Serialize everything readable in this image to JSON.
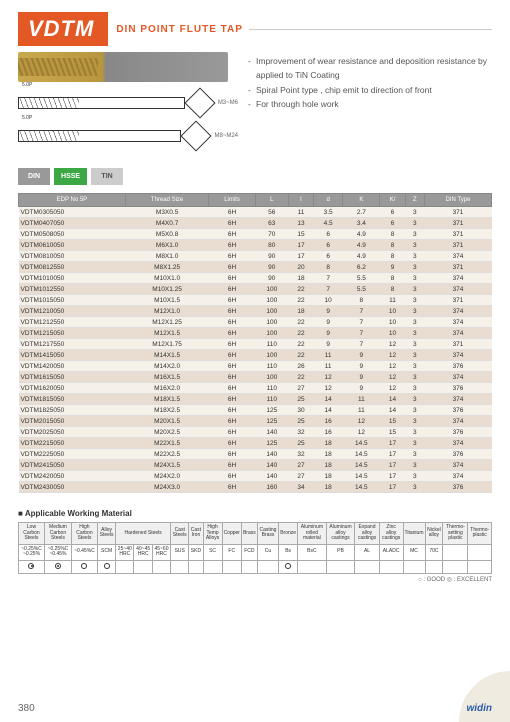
{
  "header": {
    "title": "VDTM",
    "subtitle": "DIN POINT FLUTE TAP"
  },
  "bullets": [
    "Improvement of wear resistance and deposition resistance by applied to TiN Coating",
    "Spiral Point type , chip emit to direction of front",
    "For through hole work"
  ],
  "diagram_labels": {
    "range1": "M3~M6",
    "range2": "M8~M24",
    "dim1": "5.0P"
  },
  "badges": {
    "din": "DIN",
    "hsse": "HSSE",
    "tin": "TIN"
  },
  "table": {
    "headers": [
      "EDP No\n5P",
      "Thread Size",
      "Limits",
      "L",
      "l",
      "d",
      "K",
      "K/",
      "Z",
      "DIN Type"
    ],
    "rows": [
      [
        "VDTM0305050",
        "M3X0.5",
        "6H",
        "56",
        "11",
        "3.5",
        "2.7",
        "6",
        "3",
        "371"
      ],
      [
        "VDTM0407050",
        "M4X0.7",
        "6H",
        "63",
        "13",
        "4.5",
        "3.4",
        "6",
        "3",
        "371"
      ],
      [
        "VDTM0508050",
        "M5X0.8",
        "6H",
        "70",
        "15",
        "6",
        "4.9",
        "8",
        "3",
        "371"
      ],
      [
        "VDTM0610050",
        "M6X1.0",
        "6H",
        "80",
        "17",
        "6",
        "4.9",
        "8",
        "3",
        "371"
      ],
      [
        "VDTM0810050",
        "M8X1.0",
        "6H",
        "90",
        "17",
        "6",
        "4.9",
        "8",
        "3",
        "374"
      ],
      [
        "VDTM0812550",
        "M8X1.25",
        "6H",
        "90",
        "20",
        "8",
        "6.2",
        "9",
        "3",
        "371"
      ],
      [
        "VDTM1010050",
        "M10X1.0",
        "6H",
        "90",
        "18",
        "7",
        "5.5",
        "8",
        "3",
        "374"
      ],
      [
        "VDTM1012550",
        "M10X1.25",
        "6H",
        "100",
        "22",
        "7",
        "5.5",
        "8",
        "3",
        "374"
      ],
      [
        "VDTM1015050",
        "M10X1.5",
        "6H",
        "100",
        "22",
        "10",
        "8",
        "11",
        "3",
        "371"
      ],
      [
        "VDTM1210050",
        "M12X1.0",
        "6H",
        "100",
        "18",
        "9",
        "7",
        "10",
        "3",
        "374"
      ],
      [
        "VDTM1212550",
        "M12X1.25",
        "6H",
        "100",
        "22",
        "9",
        "7",
        "10",
        "3",
        "374"
      ],
      [
        "VDTM1215050",
        "M12X1.5",
        "6H",
        "100",
        "22",
        "9",
        "7",
        "10",
        "3",
        "374"
      ],
      [
        "VDTM1217550",
        "M12X1.75",
        "6H",
        "110",
        "22",
        "9",
        "7",
        "12",
        "3",
        "371"
      ],
      [
        "VDTM1415050",
        "M14X1.5",
        "6H",
        "100",
        "22",
        "11",
        "9",
        "12",
        "3",
        "374"
      ],
      [
        "VDTM1420050",
        "M14X2.0",
        "6H",
        "110",
        "26",
        "11",
        "9",
        "12",
        "3",
        "376"
      ],
      [
        "VDTM1615050",
        "M16X1.5",
        "6H",
        "100",
        "22",
        "12",
        "9",
        "12",
        "3",
        "374"
      ],
      [
        "VDTM1620050",
        "M16X2.0",
        "6H",
        "110",
        "27",
        "12",
        "9",
        "12",
        "3",
        "376"
      ],
      [
        "VDTM1815050",
        "M18X1.5",
        "6H",
        "110",
        "25",
        "14",
        "11",
        "14",
        "3",
        "374"
      ],
      [
        "VDTM1825050",
        "M18X2.5",
        "6H",
        "125",
        "30",
        "14",
        "11",
        "14",
        "3",
        "376"
      ],
      [
        "VDTM2015050",
        "M20X1.5",
        "6H",
        "125",
        "25",
        "16",
        "12",
        "15",
        "3",
        "374"
      ],
      [
        "VDTM2025050",
        "M20X2.5",
        "6H",
        "140",
        "32",
        "16",
        "12",
        "15",
        "3",
        "376"
      ],
      [
        "VDTM2215050",
        "M22X1.5",
        "6H",
        "125",
        "25",
        "18",
        "14.5",
        "17",
        "3",
        "374"
      ],
      [
        "VDTM2225050",
        "M22X2.5",
        "6H",
        "140",
        "32",
        "18",
        "14.5",
        "17",
        "3",
        "376"
      ],
      [
        "VDTM2415050",
        "M24X1.5",
        "6H",
        "140",
        "27",
        "18",
        "14.5",
        "17",
        "3",
        "374"
      ],
      [
        "VDTM2420050",
        "M24X2.0",
        "6H",
        "140",
        "27",
        "18",
        "14.5",
        "17",
        "3",
        "374"
      ],
      [
        "VDTM2430050",
        "M24X3.0",
        "6H",
        "160",
        "34",
        "18",
        "14.5",
        "17",
        "3",
        "376"
      ]
    ]
  },
  "materials": {
    "title": "Applicable Working Material",
    "headers": [
      "Low Carbon Steels",
      "Medium Carbon Steels",
      "High Carbon Steels",
      "Alloy Steels",
      "Hardened Steels",
      "Stainless Steels",
      "Tool Steels",
      "Cast Steels",
      "Cast Iron",
      "High Temp Alloys",
      "Copper",
      "Brass",
      "Casting Brass",
      "Bronze",
      "Aluminum rolled material",
      "Aluminum alloy castings",
      "Expand alloy castings",
      "Zinc alloy castings",
      "Titanium",
      "Nickel alloy",
      "Thermo-setting plastic",
      "Thermo-plastic"
    ],
    "sub": [
      "~0.25%C ~0.25%",
      "~0.25%C ~0.45%",
      "~0.45%C",
      "SCM",
      "25~40 HRC",
      "40~45 HRC",
      "45~60 HRC",
      "SUS",
      "SKD",
      "SC",
      "FC",
      "FCD",
      "Cu",
      "Bs",
      "BsC",
      "PB",
      "AL",
      "ALADC",
      "MC",
      "70C",
      "",
      ""
    ],
    "marks": [
      "d",
      "d",
      "c",
      "c",
      "",
      "",
      "",
      "",
      "",
      "",
      "",
      "",
      "",
      "c",
      "",
      "",
      "",
      "",
      "",
      "",
      "",
      ""
    ]
  },
  "legend": "○ : GOOD   ◎ : EXCELLENT",
  "page_number": "380",
  "logo": "widin"
}
